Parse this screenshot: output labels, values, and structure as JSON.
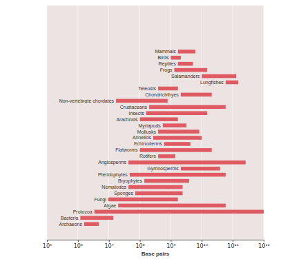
{
  "chart_data": {
    "type": "bar",
    "orientation": "horizontal",
    "log": "x",
    "grid": true,
    "tick_labels": "x",
    "color": "#e05a63",
    "x_label": "Base pairs",
    "categories": [
      "Mammals",
      "Birds",
      "Reptiles",
      "Frogs",
      "Salamanders",
      "Lungfishes",
      "Teleosts",
      "Chondrichthyes",
      "Non-vertebrate chordates",
      "Crustaceans",
      "Insects",
      "Arachnids",
      "Myriapods",
      "Mollusks",
      "Annelids",
      "Echinoderms",
      "Flatworms",
      "Rotifers",
      "Angiosperms",
      "Gymnosperms",
      "Pteridophytes",
      "Bryophytes",
      "Nematodes",
      "Sponges",
      "Fungi",
      "Algae",
      "Protozoa",
      "Bacteria",
      "Archaeons"
    ],
    "values": [
      [
        1700000000,
        6200000000
      ],
      [
        1000000000,
        2100000000
      ],
      [
        1700000000,
        5200000000
      ],
      [
        1300000000,
        15000000000
      ],
      [
        10000000000,
        130000000000
      ],
      [
        59000000000,
        150000000000
      ],
      [
        390000000,
        1700000000
      ],
      [
        2100000000,
        21000000000
      ],
      [
        17000000,
        790000000
      ],
      [
        200000000,
        59000000000
      ],
      [
        160000000,
        15000000000
      ],
      [
        100000000,
        1700000000
      ],
      [
        550000000,
        3200000000
      ],
      [
        390000000,
        8300000000
      ],
      [
        270000000,
        10000000000
      ],
      [
        610000000,
        4300000000
      ],
      [
        100000000,
        21000000000
      ],
      [
        390000000,
        1400000000
      ],
      [
        43000000,
        260000000000
      ],
      [
        2100000000,
        39000000000
      ],
      [
        47000000,
        59000000000
      ],
      [
        140000000,
        3900000000
      ],
      [
        43000000,
        2400000000
      ],
      [
        71000000,
        2400000000
      ],
      [
        9600000,
        1700000000
      ],
      [
        20000000,
        59000000000
      ],
      [
        3400000,
        1000000000000
      ],
      [
        1200000,
        14000000
      ],
      [
        1600000,
        4700000
      ]
    ],
    "xlim": [
      100000,
      1000000000000
    ],
    "xticks": [
      {
        "value": 100000,
        "label": "10⁵"
      },
      {
        "value": 1000000,
        "label": "10⁶"
      },
      {
        "value": 10000000,
        "label": "10⁷"
      },
      {
        "value": 100000000,
        "label": "10⁸"
      },
      {
        "value": 1000000000,
        "label": "10⁹"
      },
      {
        "value": 10000000000,
        "label": "10¹⁰"
      },
      {
        "value": 100000000000,
        "label": "10¹¹"
      },
      {
        "value": 1000000000000,
        "label": "10¹²"
      }
    ]
  }
}
